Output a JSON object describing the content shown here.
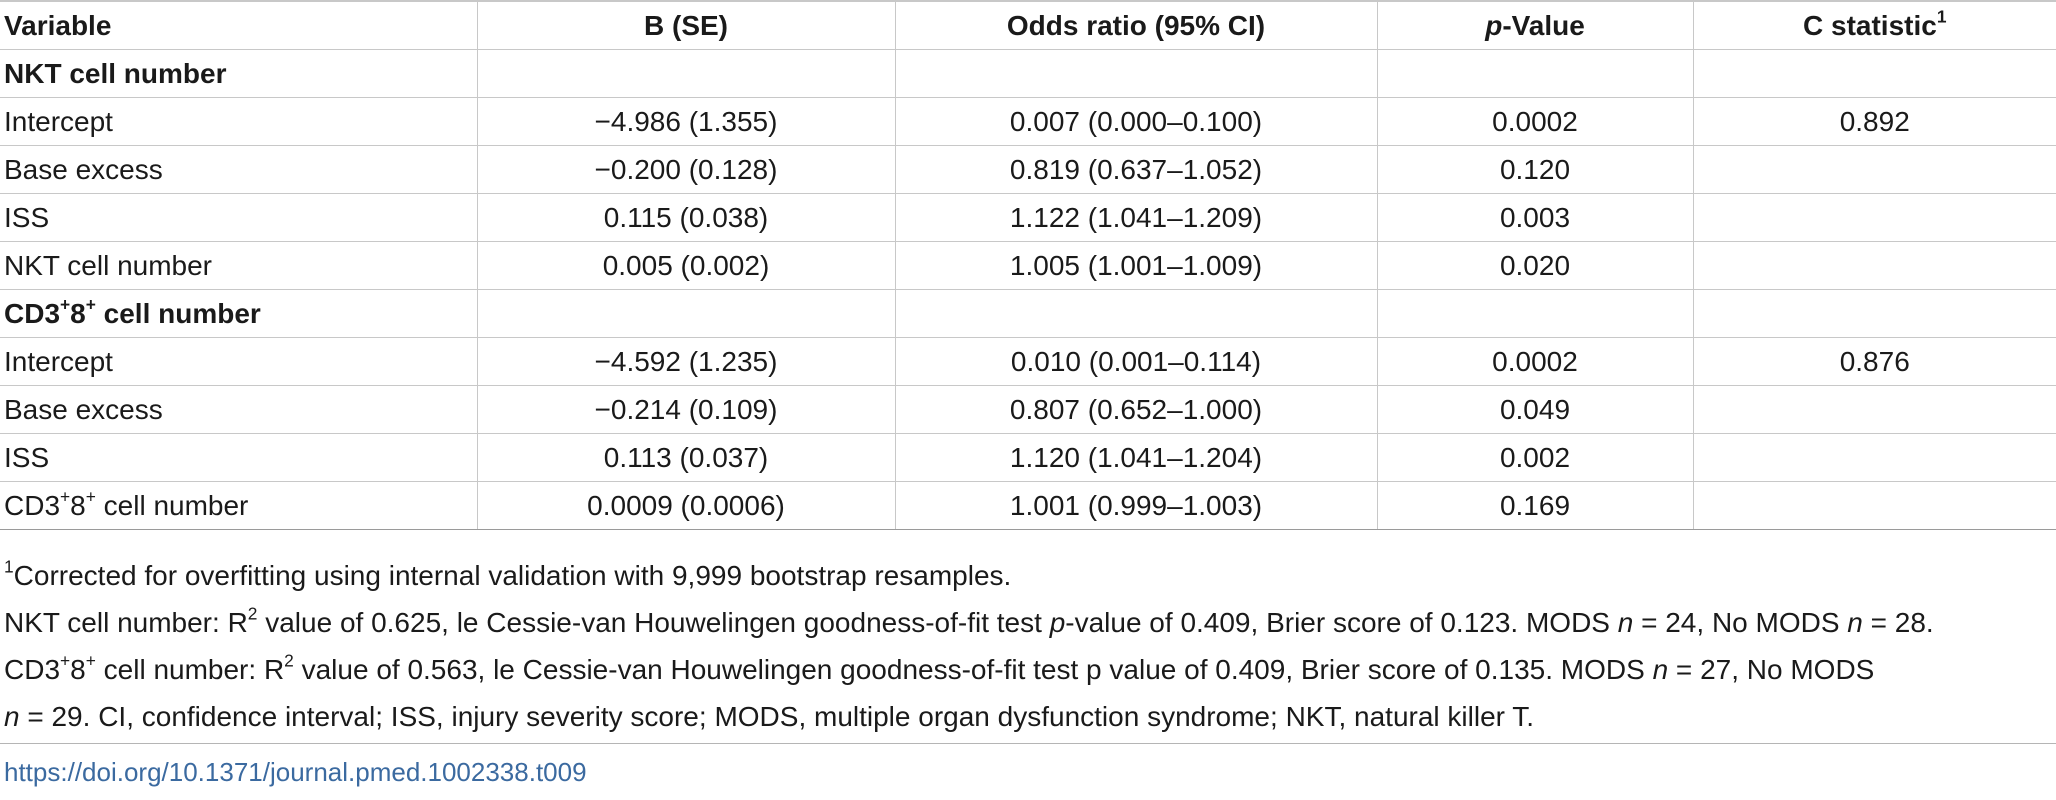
{
  "table": {
    "headers": {
      "variable": "Variable",
      "b_se": "B (SE)",
      "odds_ratio": "Odds ratio (95% CI)",
      "p_value_italic": "p",
      "p_value_rest": "-Value",
      "c_stat": "C statistic",
      "c_stat_sup": "1"
    },
    "sections": [
      {
        "title": "NKT cell number",
        "rows": [
          {
            "variable": "Intercept",
            "b_se": "−4.986 (1.355)",
            "or": "0.007 (0.000–0.100)",
            "p": "0.0002",
            "c": "0.892"
          },
          {
            "variable": "Base excess",
            "b_se": "−0.200 (0.128)",
            "or": "0.819 (0.637–1.052)",
            "p": "0.120",
            "c": ""
          },
          {
            "variable": "ISS",
            "b_se": "0.115 (0.038)",
            "or": "1.122 (1.041–1.209)",
            "p": "0.003",
            "c": ""
          },
          {
            "variable": "NKT cell number",
            "b_se": "0.005 (0.002)",
            "or": "1.005 (1.001–1.009)",
            "p": "0.020",
            "c": ""
          }
        ]
      },
      {
        "title_a": "CD3",
        "title_sup1": "+",
        "title_b": "8",
        "title_sup2": "+",
        "title_c": " cell number",
        "rows": [
          {
            "variable": "Intercept",
            "b_se": "−4.592 (1.235)",
            "or": "0.010 (0.001–0.114)",
            "p": "0.0002",
            "c": "0.876"
          },
          {
            "variable": "Base excess",
            "b_se": "−0.214 (0.109)",
            "or": "0.807 (0.652–1.000)",
            "p": "0.049",
            "c": ""
          },
          {
            "variable": "ISS",
            "b_se": "0.113 (0.037)",
            "or": "1.120 (1.041–1.204)",
            "p": "0.002",
            "c": ""
          },
          {
            "variable_a": "CD3",
            "variable_sup1": "+",
            "variable_b": "8",
            "variable_sup2": "+",
            "variable_c": " cell number",
            "b_se": "0.0009 (0.0006)",
            "or": "1.001 (0.999–1.003)",
            "p": "0.169",
            "c": ""
          }
        ]
      }
    ]
  },
  "footnotes": {
    "fn1_sup": "1",
    "fn1_text": "Corrected for overfitting using internal validation with 9,999 bootstrap resamples.",
    "nkt": {
      "a": "NKT cell number: R",
      "sup": "2",
      "b": " value of 0.625, le Cessie-van Houwelingen goodness-of-fit test ",
      "p_italic": "p",
      "c": "-value of 0.409, Brier score of 0.123. MODS ",
      "n1_italic": "n",
      "d": " = 24, No MODS ",
      "n2_italic": "n",
      "e": " = 28."
    },
    "cd3": {
      "a": "CD3",
      "sup1": "+",
      "b": "8",
      "sup2": "+",
      "c": " cell number: R",
      "sup3": "2",
      "d": " value of 0.563, le Cessie-van Houwelingen goodness-of-fit test p value of 0.409, Brier score of 0.135. MODS ",
      "n1_italic": "n",
      "e": " = 27, No MODS"
    },
    "cd3_line2": {
      "n_italic": "n",
      "a": " = 29. CI, confidence interval; ISS, injury severity score; MODS, multiple organ dysfunction syndrome; NKT, natural killer T."
    }
  },
  "doi": "https://doi.org/10.1371/journal.pmed.1002338.t009",
  "colors": {
    "link": "#3b6aa0",
    "rule": "#c8c8c8",
    "text": "#1a1a1a"
  }
}
